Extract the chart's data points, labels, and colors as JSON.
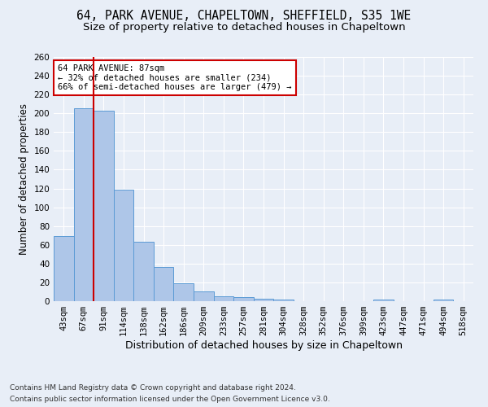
{
  "title_line1": "64, PARK AVENUE, CHAPELTOWN, SHEFFIELD, S35 1WE",
  "title_line2": "Size of property relative to detached houses in Chapeltown",
  "xlabel": "Distribution of detached houses by size in Chapeltown",
  "ylabel": "Number of detached properties",
  "footer_line1": "Contains HM Land Registry data © Crown copyright and database right 2024.",
  "footer_line2": "Contains public sector information licensed under the Open Government Licence v3.0.",
  "bar_labels": [
    "43sqm",
    "67sqm",
    "91sqm",
    "114sqm",
    "138sqm",
    "162sqm",
    "186sqm",
    "209sqm",
    "233sqm",
    "257sqm",
    "281sqm",
    "304sqm",
    "328sqm",
    "352sqm",
    "376sqm",
    "399sqm",
    "423sqm",
    "447sqm",
    "471sqm",
    "494sqm",
    "518sqm"
  ],
  "bar_values": [
    69,
    205,
    203,
    119,
    63,
    36,
    19,
    10,
    5,
    4,
    3,
    2,
    0,
    0,
    0,
    0,
    2,
    0,
    0,
    2,
    0
  ],
  "bar_color": "#aec6e8",
  "bar_edge_color": "#5b9bd5",
  "vline_x": 1.5,
  "vline_color": "#cc0000",
  "annotation_line1": "64 PARK AVENUE: 87sqm",
  "annotation_line2": "← 32% of detached houses are smaller (234)",
  "annotation_line3": "66% of semi-detached houses are larger (479) →",
  "annotation_box_color": "#ffffff",
  "annotation_border_color": "#cc0000",
  "ylim": [
    0,
    260
  ],
  "yticks": [
    0,
    20,
    40,
    60,
    80,
    100,
    120,
    140,
    160,
    180,
    200,
    220,
    240,
    260
  ],
  "background_color": "#e8eef7",
  "plot_bg_color": "#e8eef7",
  "grid_color": "#ffffff",
  "title_fontsize": 10.5,
  "subtitle_fontsize": 9.5,
  "tick_fontsize": 7.5,
  "ylabel_fontsize": 8.5,
  "xlabel_fontsize": 9,
  "footer_fontsize": 6.5
}
